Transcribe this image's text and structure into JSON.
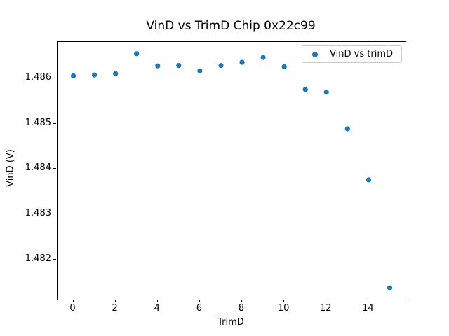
{
  "chart_data": {
    "type": "scatter",
    "title": "VinD vs TrimD Chip 0x22c99",
    "xlabel": "TrimD",
    "ylabel": "VinD (V)",
    "legend": [
      "VinD vs trimD"
    ],
    "legend_position": "upper right",
    "grid": false,
    "marker_color": "#1f77b4",
    "x": [
      0,
      1,
      2,
      3,
      4,
      5,
      6,
      7,
      8,
      9,
      10,
      11,
      12,
      13,
      14,
      15
    ],
    "y": [
      1.48606,
      1.48608,
      1.48611,
      1.48655,
      1.48628,
      1.48629,
      1.48617,
      1.48629,
      1.48636,
      1.48647,
      1.48626,
      1.48576,
      1.4857,
      1.48489,
      1.48376,
      1.48137
    ],
    "xlim": [
      -0.75,
      15.75
    ],
    "ylim": [
      1.48111,
      1.48681
    ],
    "x_ticks": [
      0,
      2,
      4,
      6,
      8,
      10,
      12,
      14
    ],
    "x_tick_labels": [
      "0",
      "2",
      "4",
      "6",
      "8",
      "10",
      "12",
      "14"
    ],
    "y_ticks": [
      1.482,
      1.483,
      1.484,
      1.485,
      1.486
    ],
    "y_tick_labels": [
      "1.482",
      "1.483",
      "1.484",
      "1.485",
      "1.486"
    ]
  }
}
